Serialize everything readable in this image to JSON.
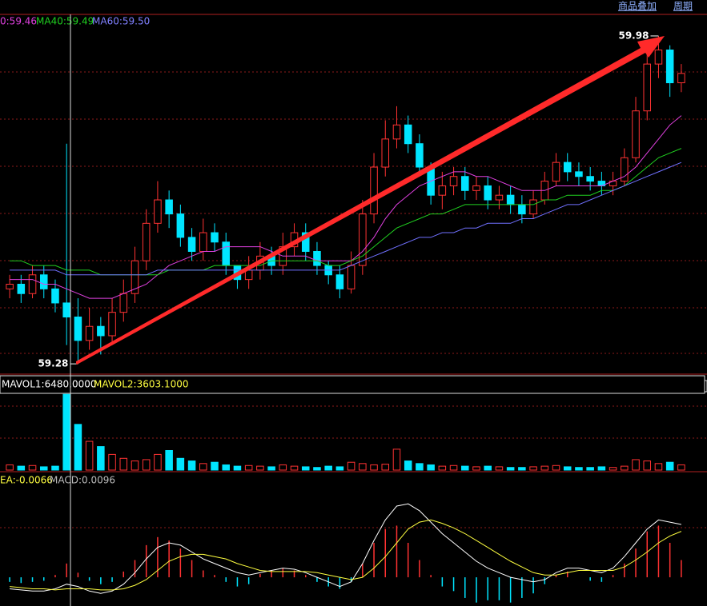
{
  "toolbar": {
    "links": [
      "商品叠加",
      "周期"
    ]
  },
  "chart_data": [
    {
      "type": "candlestick",
      "legend": [
        "0:59.46",
        "MA40:59.49",
        "MA60:59.50"
      ],
      "annotations": [
        "59.98",
        "59.28"
      ],
      "ylim": [
        59.258,
        60.026
      ],
      "up_color": "#ff3232",
      "down_color": "#00e5ff",
      "open": [
        59.44,
        59.45,
        59.43,
        59.47,
        59.44,
        59.41,
        59.38,
        59.33,
        59.36,
        59.34,
        59.39,
        59.43,
        59.5,
        59.58,
        59.63,
        59.6,
        59.55,
        59.52,
        59.56,
        59.54,
        59.49,
        59.46,
        59.48,
        59.51,
        59.49,
        59.53,
        59.56,
        59.52,
        59.49,
        59.47,
        59.44,
        59.49,
        59.6,
        59.7,
        59.76,
        59.79,
        59.75,
        59.7,
        59.64,
        59.66,
        59.68,
        59.65,
        59.66,
        59.63,
        59.64,
        59.62,
        59.6,
        59.63,
        59.67,
        59.71,
        59.69,
        59.68,
        59.67,
        59.66,
        59.67,
        59.72,
        59.82,
        59.92,
        59.95,
        59.88
      ],
      "high": [
        59.47,
        59.47,
        59.49,
        59.49,
        59.46,
        59.75,
        59.42,
        59.4,
        59.38,
        59.42,
        59.46,
        59.53,
        59.61,
        59.67,
        59.65,
        59.62,
        59.57,
        59.59,
        59.58,
        59.56,
        59.49,
        59.51,
        59.54,
        59.53,
        59.56,
        59.58,
        59.58,
        59.54,
        59.5,
        59.49,
        59.52,
        59.63,
        59.73,
        59.8,
        59.83,
        59.81,
        59.77,
        59.71,
        59.69,
        59.7,
        59.7,
        59.68,
        59.68,
        59.66,
        59.66,
        59.64,
        59.65,
        59.69,
        59.73,
        59.73,
        59.71,
        59.7,
        59.69,
        59.69,
        59.74,
        59.85,
        59.95,
        59.98,
        59.96,
        59.92
      ],
      "low": [
        59.42,
        59.41,
        59.42,
        59.42,
        59.39,
        59.32,
        59.28,
        59.31,
        59.3,
        59.32,
        59.37,
        59.41,
        59.48,
        59.56,
        59.57,
        59.53,
        59.5,
        59.5,
        59.52,
        59.47,
        59.44,
        59.44,
        59.46,
        59.47,
        59.47,
        59.51,
        59.5,
        59.47,
        59.45,
        59.42,
        59.43,
        59.47,
        59.58,
        59.68,
        59.74,
        59.73,
        59.68,
        59.62,
        59.61,
        59.64,
        59.63,
        59.63,
        59.61,
        59.61,
        59.6,
        59.58,
        59.59,
        59.62,
        59.66,
        59.67,
        59.66,
        59.65,
        59.64,
        59.64,
        59.66,
        59.71,
        59.8,
        59.89,
        59.85,
        59.86
      ],
      "close": [
        59.45,
        59.43,
        59.47,
        59.44,
        59.41,
        59.38,
        59.33,
        59.36,
        59.34,
        59.39,
        59.43,
        59.5,
        59.58,
        59.63,
        59.6,
        59.55,
        59.52,
        59.56,
        59.54,
        59.49,
        59.46,
        59.48,
        59.51,
        59.49,
        59.53,
        59.56,
        59.52,
        59.49,
        59.47,
        59.44,
        59.49,
        59.6,
        59.7,
        59.76,
        59.79,
        59.75,
        59.7,
        59.64,
        59.66,
        59.68,
        59.65,
        59.66,
        59.63,
        59.64,
        59.62,
        59.6,
        59.63,
        59.67,
        59.71,
        59.69,
        59.68,
        59.67,
        59.66,
        59.67,
        59.72,
        59.82,
        59.92,
        59.95,
        59.88,
        59.9
      ],
      "series": [
        {
          "color": "#e040e0",
          "values": [
            59.46,
            59.46,
            59.46,
            59.45,
            59.45,
            59.44,
            59.43,
            59.42,
            59.42,
            59.42,
            59.43,
            59.44,
            59.45,
            59.47,
            59.49,
            59.5,
            59.51,
            59.52,
            59.52,
            59.53,
            59.53,
            59.53,
            59.53,
            59.52,
            59.51,
            59.51,
            59.51,
            59.5,
            59.5,
            59.5,
            59.5,
            59.52,
            59.55,
            59.59,
            59.62,
            59.64,
            59.66,
            59.67,
            59.68,
            59.69,
            59.69,
            59.68,
            59.68,
            59.67,
            59.66,
            59.65,
            59.65,
            59.65,
            59.66,
            59.66,
            59.66,
            59.66,
            59.66,
            59.67,
            59.68,
            59.7,
            59.73,
            59.76,
            59.79,
            59.81
          ]
        },
        {
          "color": "#20d020",
          "values": [
            59.5,
            59.5,
            59.49,
            59.49,
            59.49,
            59.48,
            59.48,
            59.48,
            59.47,
            59.47,
            59.47,
            59.47,
            59.47,
            59.47,
            59.48,
            59.48,
            59.48,
            59.48,
            59.49,
            59.49,
            59.49,
            59.49,
            59.49,
            59.5,
            59.5,
            59.5,
            59.5,
            59.5,
            59.49,
            59.49,
            59.5,
            59.51,
            59.53,
            59.55,
            59.57,
            59.58,
            59.59,
            59.6,
            59.6,
            59.61,
            59.62,
            59.62,
            59.62,
            59.62,
            59.62,
            59.62,
            59.62,
            59.63,
            59.63,
            59.64,
            59.64,
            59.64,
            59.65,
            59.65,
            59.66,
            59.68,
            59.7,
            59.72,
            59.73,
            59.74
          ]
        },
        {
          "color": "#7070ff",
          "values": [
            59.48,
            59.48,
            59.48,
            59.48,
            59.48,
            59.47,
            59.47,
            59.47,
            59.47,
            59.47,
            59.47,
            59.47,
            59.47,
            59.48,
            59.48,
            59.48,
            59.48,
            59.48,
            59.48,
            59.48,
            59.48,
            59.48,
            59.48,
            59.48,
            59.48,
            59.48,
            59.48,
            59.48,
            59.48,
            59.48,
            59.49,
            59.5,
            59.51,
            59.52,
            59.53,
            59.54,
            59.55,
            59.55,
            59.56,
            59.56,
            59.57,
            59.57,
            59.58,
            59.58,
            59.58,
            59.59,
            59.59,
            59.6,
            59.61,
            59.62,
            59.62,
            59.63,
            59.64,
            59.65,
            59.66,
            59.67,
            59.68,
            59.69,
            59.7,
            59.71
          ]
        }
      ]
    },
    {
      "type": "bar",
      "legend": [
        "MAVOL1:6480.0000",
        "MAVOL2:3603.1000"
      ],
      "ylim": [
        0,
        60000
      ],
      "values": [
        4000,
        3000,
        3500,
        2500,
        3000,
        58000,
        35000,
        22000,
        18000,
        12000,
        9000,
        7000,
        8000,
        12000,
        15000,
        9000,
        7000,
        5000,
        6000,
        4000,
        3000,
        3500,
        3000,
        2500,
        4000,
        3000,
        2500,
        2000,
        3000,
        2500,
        6000,
        5000,
        4000,
        4500,
        16000,
        7000,
        5000,
        4000,
        3000,
        3500,
        3000,
        2500,
        3000,
        2500,
        2000,
        2000,
        2500,
        3000,
        3500,
        2500,
        2000,
        2000,
        2500,
        2000,
        3000,
        8000,
        7000,
        5000,
        6000,
        4000
      ]
    },
    {
      "type": "macd",
      "legend": [
        "EA:-0.0066",
        "MACD:0.0096"
      ],
      "ylim": [
        -0.025,
        0.085
      ],
      "values": [
        -0.004,
        -0.005,
        -0.004,
        -0.003,
        0.002,
        0.012,
        0.004,
        -0.003,
        -0.006,
        -0.004,
        0.005,
        0.015,
        0.028,
        0.035,
        0.032,
        0.025,
        0.015,
        0.006,
        0.002,
        -0.004,
        -0.008,
        -0.006,
        0.003,
        0.006,
        0.008,
        0.006,
        0.002,
        -0.004,
        -0.008,
        -0.01,
        -0.004,
        0.012,
        0.03,
        0.042,
        0.045,
        0.03,
        0.015,
        0.002,
        -0.008,
        -0.012,
        -0.018,
        -0.022,
        -0.02,
        -0.02,
        -0.022,
        -0.018,
        -0.014,
        -0.006,
        0.002,
        0.005,
        0.0,
        -0.003,
        -0.004,
        0.002,
        0.012,
        0.025,
        0.04,
        0.045,
        0.03,
        0.015
      ],
      "series": [
        {
          "color": "#ffffff",
          "values": [
            -0.01,
            -0.011,
            -0.012,
            -0.012,
            -0.01,
            -0.006,
            -0.008,
            -0.012,
            -0.014,
            -0.012,
            -0.006,
            0.004,
            0.016,
            0.026,
            0.03,
            0.028,
            0.022,
            0.016,
            0.012,
            0.008,
            0.004,
            0.002,
            0.004,
            0.006,
            0.008,
            0.007,
            0.004,
            0.0,
            -0.004,
            -0.008,
            -0.004,
            0.012,
            0.032,
            0.05,
            0.062,
            0.064,
            0.058,
            0.048,
            0.038,
            0.03,
            0.022,
            0.014,
            0.008,
            0.004,
            0.0,
            -0.002,
            -0.004,
            -0.002,
            0.004,
            0.008,
            0.008,
            0.006,
            0.004,
            0.008,
            0.018,
            0.03,
            0.042,
            0.05,
            0.048,
            0.046
          ]
        },
        {
          "color": "#ffff40",
          "values": [
            -0.008,
            -0.009,
            -0.01,
            -0.01,
            -0.011,
            -0.01,
            -0.01,
            -0.01,
            -0.011,
            -0.011,
            -0.01,
            -0.007,
            -0.002,
            0.006,
            0.014,
            0.018,
            0.02,
            0.02,
            0.018,
            0.016,
            0.012,
            0.009,
            0.006,
            0.005,
            0.005,
            0.005,
            0.005,
            0.004,
            0.002,
            0.0,
            -0.002,
            0.0,
            0.008,
            0.018,
            0.03,
            0.042,
            0.048,
            0.05,
            0.047,
            0.043,
            0.038,
            0.032,
            0.026,
            0.02,
            0.014,
            0.009,
            0.004,
            0.002,
            0.002,
            0.004,
            0.006,
            0.006,
            0.006,
            0.006,
            0.009,
            0.015,
            0.022,
            0.03,
            0.036,
            0.04
          ]
        }
      ]
    }
  ]
}
